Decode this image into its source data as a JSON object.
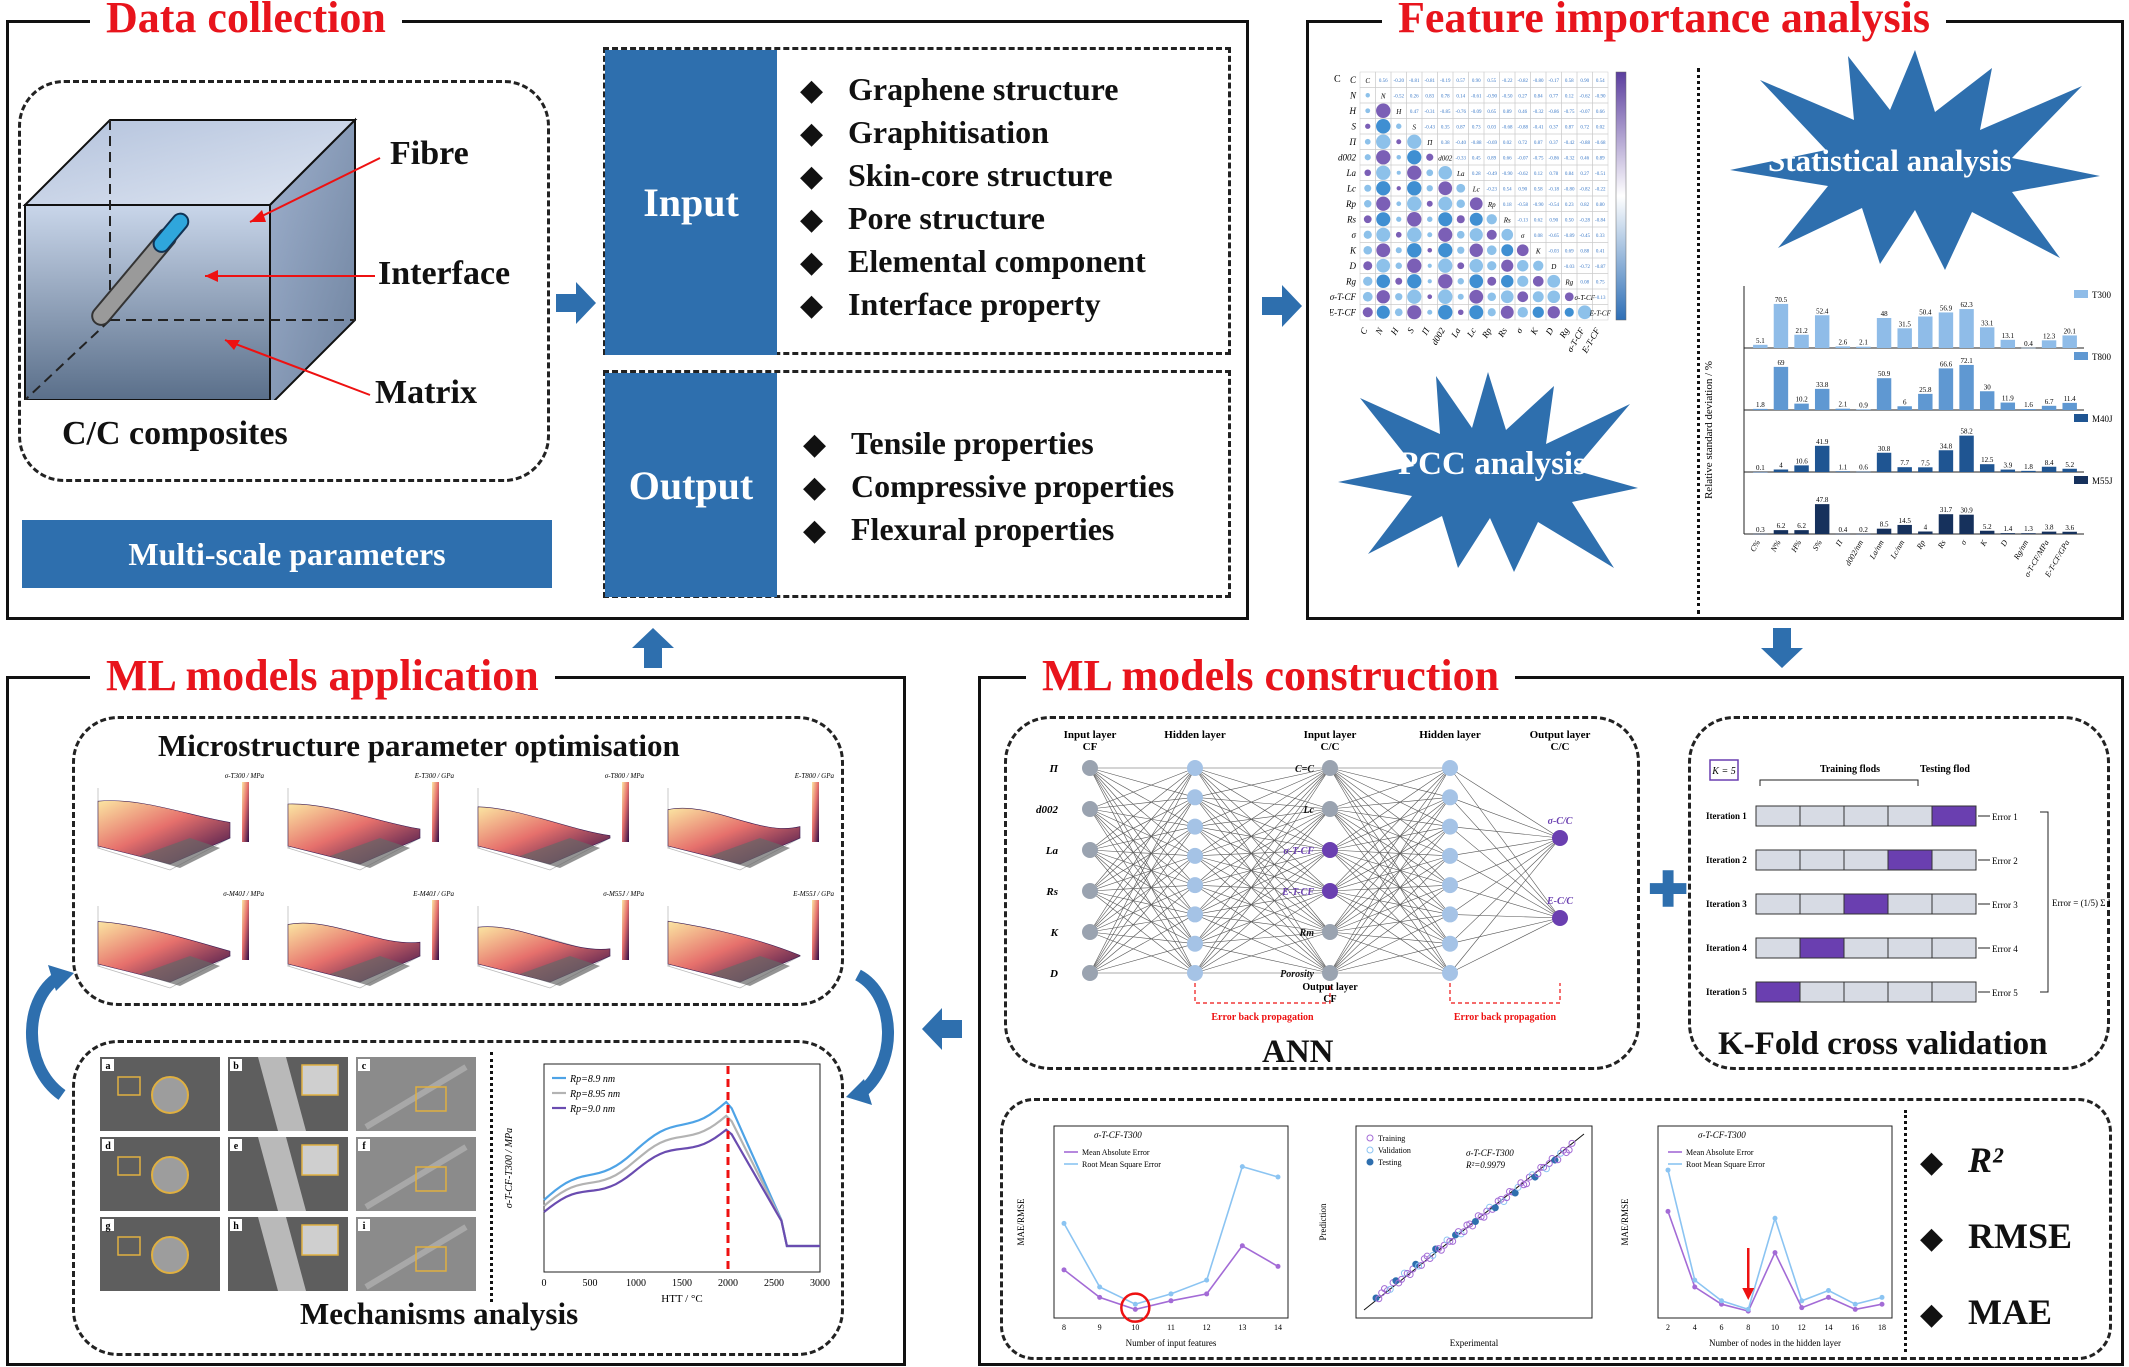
{
  "data_collection": {
    "title": "Data collection",
    "labels": {
      "fibre": "Fibre",
      "interface": "Interface",
      "matrix": "Matrix",
      "composite": "C/C composites"
    },
    "multi_scale": "Multi-scale parameters",
    "input": {
      "label": "Input",
      "items": [
        "Graphene structure",
        "Graphitisation",
        "Skin-core structure",
        "Pore structure",
        "Elemental component",
        "Interface property"
      ]
    },
    "output": {
      "label": "Output",
      "items": [
        "Tensile properties",
        "Compressive properties",
        "Flexural properties"
      ]
    }
  },
  "feature_importance": {
    "title": "Feature importance analysis",
    "statistical": "Statistical analysis",
    "pcc": "PCC analysis",
    "pcc_variables": [
      "C",
      "N",
      "H",
      "S",
      "Π",
      "d002",
      "La",
      "Lc",
      "Rp",
      "Rs",
      "σ",
      "K",
      "D",
      "Rg",
      "σ-T-CF",
      "E-T-CF"
    ],
    "rsd_ylabel": "Relative standard deviation / %",
    "rsd_categories": [
      "C%",
      "N%",
      "H%",
      "S%",
      "Π",
      "d002/nm",
      "La/nm",
      "Lc/nm",
      "Rp",
      "Rs",
      "σ",
      "K",
      "D",
      "Rg/nm",
      "σ-T-CF/MPa",
      "E-T-CF/GPa"
    ]
  },
  "chart_data": {
    "type": "bar",
    "ylabel": "Relative standard deviation / %",
    "categories": [
      "C%",
      "N%",
      "H%",
      "S%",
      "Π",
      "d002/nm",
      "La/nm",
      "Lc/nm",
      "Rp",
      "Rs",
      "σ",
      "K",
      "D",
      "Rg/nm",
      "σ-T-CF/MPa",
      "E-T-CF/GPa"
    ],
    "series": [
      {
        "name": "T300",
        "color": "#8fbce8",
        "values": [
          5.1,
          70.5,
          21.2,
          52.4,
          2.6,
          2.1,
          48.0,
          31.5,
          50.4,
          56.9,
          62.3,
          33.1,
          13.1,
          0.4,
          12.3,
          20.1
        ]
      },
      {
        "name": "T800",
        "color": "#5f98d2",
        "values": [
          1.8,
          69.0,
          10.2,
          33.8,
          2.1,
          0.9,
          50.9,
          6.0,
          25.8,
          66.6,
          72.1,
          30.0,
          11.9,
          1.6,
          6.7,
          11.4
        ]
      },
      {
        "name": "M40J",
        "color": "#1f5592",
        "values": [
          0.1,
          4.0,
          10.6,
          41.9,
          1.1,
          0.6,
          30.8,
          7.7,
          7.5,
          34.8,
          58.2,
          12.5,
          3.9,
          1.8,
          8.4,
          5.2
        ]
      },
      {
        "name": "M55J",
        "color": "#16315c",
        "values": [
          0.3,
          6.2,
          6.2,
          47.8,
          0.4,
          0.2,
          8.5,
          14.5,
          4.0,
          31.7,
          30.9,
          5.2,
          1.4,
          1.3,
          3.8,
          3.6
        ]
      }
    ]
  },
  "ml_application": {
    "title": "ML models application",
    "optimisation_title": "Microstructure parameter optimisation",
    "surface_titles": [
      "σ-T300 / MPa",
      "E-T300 / GPa",
      "σ-T800 / MPa",
      "E-T800 / GPa",
      "σ-M40J / MPa",
      "E-M40J / GPa",
      "σ-M55J / MPa",
      "E-M55J / GPa"
    ],
    "mechanisms_title": "Mechanisms analysis",
    "sem_letters": [
      "a",
      "b",
      "c",
      "d",
      "e",
      "f",
      "g",
      "h",
      "i"
    ],
    "curve_chart": {
      "ylabel": "σ-T-CF-T300 / MPa",
      "xlabel": "HTT / °C",
      "xticks": [
        "0",
        "500",
        "1000",
        "1500",
        "2000",
        "2500",
        "3000"
      ],
      "legend": [
        "Rp=8.9 nm",
        "Rp=8.95 nm",
        "Rp=9.0 nm"
      ]
    }
  },
  "ml_construction": {
    "title": "ML models construction",
    "ann": {
      "label": "ANN",
      "layer_titles": [
        "Input layer\nCF",
        "Hidden layer",
        "Input layer\nC/C",
        "Hidden layer",
        "Output layer\nC/C"
      ],
      "cf_inputs": [
        "Π",
        "d002",
        "La",
        "Rs",
        "K",
        "D"
      ],
      "cc_inputs": [
        "C=C",
        "Lc",
        "σ-T-CF",
        "E-T-CF",
        "Rm",
        "Porosity"
      ],
      "outputs": [
        "σ-C/C",
        "E-C/C"
      ],
      "output_cf": "Output layer\nCF",
      "backprop": "Error back propagation"
    },
    "kfold": {
      "label": "K-Fold cross validation",
      "k": "K = 5",
      "training": "Training flods",
      "testing": "Testing flod",
      "iterations": [
        "Iteration 1",
        "Iteration 2",
        "Iteration 3",
        "Iteration 4",
        "Iteration 5"
      ],
      "errors": [
        "Error 1",
        "Error 2",
        "Error 3",
        "Error 4",
        "Error 5"
      ],
      "formula": "Error = (1/5) Σ Errori"
    },
    "plot1": {
      "title": "σ-T-CF-T300",
      "ylabel": "MAE/RMSE",
      "xlabel": "Number of input features",
      "legend": [
        "Mean Absolute Error",
        "Root Mean Square Error"
      ],
      "xticks": [
        "8",
        "9",
        "10",
        "11",
        "12",
        "13",
        "14"
      ]
    },
    "plot2": {
      "title": "σ-T-CF-T300",
      "r2": "R²=0.9979",
      "ylabel": "Prediction",
      "xlabel": "Experimental",
      "legend": [
        "Training",
        "Validation",
        "Testing"
      ]
    },
    "plot3": {
      "title": "σ-T-CF-T300",
      "ylabel": "MAE/RMSE",
      "xlabel": "Number of nodes in the hidden layer",
      "legend": [
        "Mean Absolute Error",
        "Root Mean Square Error"
      ],
      "xticks": [
        "2",
        "4",
        "6",
        "8",
        "10",
        "12",
        "14",
        "16",
        "18"
      ]
    },
    "metrics": [
      "R²",
      "RMSE",
      "MAE"
    ]
  }
}
